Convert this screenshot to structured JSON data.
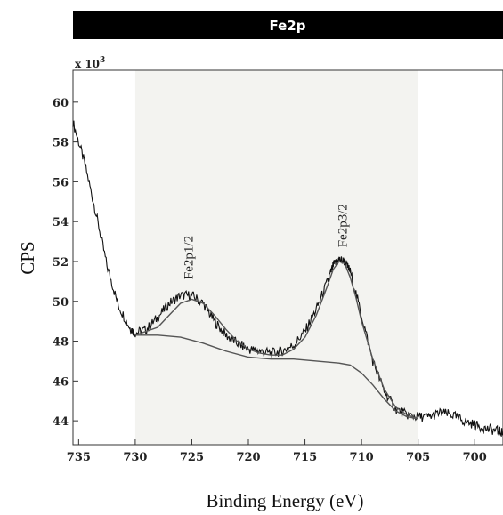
{
  "chart_data": {
    "type": "line",
    "title": "Fe2p",
    "xlabel": "Binding Energy (eV)",
    "ylabel": "CPS",
    "y_multiplier": "x 10",
    "y_multiplier_exp": "3",
    "xlim": [
      735.5,
      697.5
    ],
    "ylim": [
      42.8,
      61.6
    ],
    "x_reversed": true,
    "x_ticks": [
      735,
      730,
      725,
      720,
      715,
      710,
      705,
      700
    ],
    "y_ticks": [
      44,
      46,
      48,
      50,
      52,
      54,
      56,
      58,
      60
    ],
    "shaded_region": [
      730,
      705
    ],
    "colors": {
      "spectrum": "#111111",
      "fit": "#555555",
      "shade": "#f3f3f0",
      "title_bar": "#000000"
    },
    "annotations": [
      {
        "text": "Fe2p1/2",
        "x": 725.3,
        "y": 51.1
      },
      {
        "text": "Fe2p3/2",
        "x": 711.7,
        "y": 52.7
      }
    ],
    "series": [
      {
        "role": "spectrum",
        "x": [
          735.5,
          734.5,
          733.5,
          732.5,
          731.5,
          730.5,
          730,
          729,
          728,
          727,
          726,
          725,
          724,
          723,
          722,
          721,
          720,
          719,
          718,
          717,
          716,
          715,
          714,
          713,
          712.5,
          712,
          711.5,
          711,
          710,
          709,
          708,
          707,
          706,
          705,
          704,
          703,
          702,
          701,
          700,
          699,
          698,
          697.5
        ],
        "y": [
          59.0,
          57.0,
          54.5,
          51.8,
          49.8,
          48.7,
          48.4,
          48.6,
          49.2,
          49.9,
          50.3,
          50.3,
          49.9,
          49.0,
          48.3,
          47.9,
          47.6,
          47.5,
          47.4,
          47.5,
          47.8,
          48.5,
          49.6,
          51.0,
          51.8,
          52.1,
          52.0,
          51.5,
          49.3,
          47.0,
          45.5,
          44.6,
          44.3,
          44.2,
          44.2,
          44.4,
          44.3,
          44.0,
          43.8,
          43.6,
          43.5,
          43.4
        ]
      },
      {
        "role": "background",
        "x": [
          730,
          728,
          726,
          724,
          722,
          720,
          718,
          716,
          714,
          712,
          711,
          710,
          709,
          708,
          707,
          706,
          705
        ],
        "y": [
          48.3,
          48.3,
          48.2,
          47.9,
          47.5,
          47.2,
          47.1,
          47.1,
          47.0,
          46.9,
          46.8,
          46.4,
          45.8,
          45.1,
          44.5,
          44.2,
          44.1
        ]
      },
      {
        "role": "envelope",
        "x": [
          730,
          728,
          727,
          726,
          725,
          724,
          723,
          722,
          721,
          720,
          719,
          718,
          717,
          716,
          715,
          714,
          713,
          712.5,
          712,
          711.5,
          711,
          710.5,
          710,
          709,
          708,
          707,
          706,
          705
        ],
        "y": [
          48.3,
          48.7,
          49.3,
          49.9,
          50.1,
          49.9,
          49.3,
          48.6,
          48.0,
          47.6,
          47.4,
          47.3,
          47.3,
          47.6,
          48.2,
          49.3,
          50.8,
          51.6,
          52.0,
          51.9,
          51.2,
          50.2,
          49.0,
          47.1,
          45.6,
          44.7,
          44.3,
          44.1
        ]
      }
    ]
  }
}
